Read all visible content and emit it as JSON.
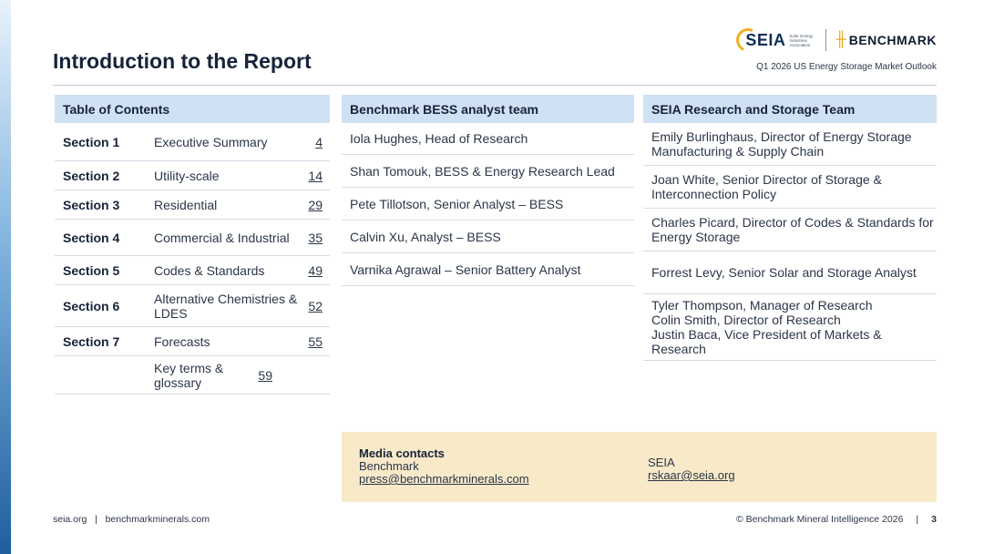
{
  "header": {
    "title": "Introduction to the Report",
    "subtitle": "Q1 2026 US Energy Storage Market Outlook",
    "seia_logo_text": "SEIA",
    "seia_logo_sub": "Solar Energy Industries Association",
    "benchmark_logo_text": "BENCHMARK"
  },
  "toc": {
    "header": "Table of Contents",
    "rows": [
      {
        "section": "Section 1",
        "name": "Executive Summary",
        "page": "4"
      },
      {
        "section": "Section 2",
        "name": "Utility-scale",
        "page": "14"
      },
      {
        "section": "Section 3",
        "name": "Residential",
        "page": "29"
      },
      {
        "section": "Section 4",
        "name": "Commercial & Industrial",
        "page": "35"
      },
      {
        "section": "Section 5",
        "name": "Codes & Standards",
        "page": "49"
      },
      {
        "section": "Section 6",
        "name": "Alternative Chemistries & LDES",
        "page": "52"
      },
      {
        "section": "Section 7",
        "name": "Forecasts",
        "page": "55"
      },
      {
        "section": "",
        "name": "Key terms & glossary",
        "page": "59"
      }
    ]
  },
  "bm_team": {
    "header": "Benchmark BESS analyst team",
    "members": [
      "Iola Hughes, Head of Research",
      "Shan Tomouk, BESS & Energy Research Lead",
      "Pete Tillotson, Senior Analyst – BESS",
      "Calvin Xu, Analyst – BESS",
      "Varnika Agrawal – Senior Battery Analyst"
    ]
  },
  "seia_team": {
    "header": "SEIA Research and Storage Team",
    "members": [
      [
        "Emily Burlinghaus, Director of Energy Storage Manufacturing & Supply Chain"
      ],
      [
        "Joan White, Senior Director of Storage & Interconnection Policy"
      ],
      [
        "Charles Picard, Director of Codes & Standards for Energy Storage"
      ],
      [
        "Forrest Levy, Senior Solar and Storage Analyst"
      ],
      [
        "Tyler Thompson, Manager of Research",
        "Colin Smith, Director of Research",
        "Justin Baca, Vice President of Markets & Research"
      ]
    ]
  },
  "media": {
    "title": "Media contacts",
    "benchmark_label": "Benchmark",
    "benchmark_email": "press@benchmarkminerals.com",
    "seia_label": "SEIA",
    "seia_email": "rskaar@seia.org"
  },
  "footer": {
    "left": "seia.org   |   benchmarkminerals.com",
    "copyright": "© Benchmark Mineral Intelligence 2026",
    "separator": "|",
    "page": "3"
  },
  "colors": {
    "header_fill": "#cfe1f3",
    "media_fill": "#f8e9c9",
    "accent_gold": "#f2b01e",
    "navy": "#17233a"
  }
}
